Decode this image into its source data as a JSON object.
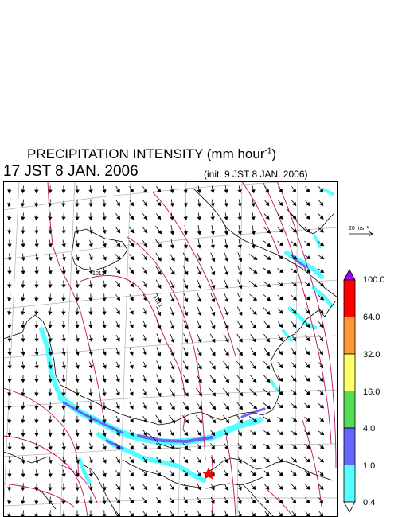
{
  "header": {
    "title_main": "PRECIPITATION INTENSITY (mm hour",
    "title_exp": "-1",
    "title_end": ")",
    "valid_time": "17 JST 8 JAN. 2006",
    "init_time": "(init. 9 JST 8 JAN. 2006)"
  },
  "map": {
    "wind_scale_label": "20 ms⁻¹",
    "isobar_labels": [
      "1013",
      "1012"
    ],
    "colors": {
      "isobar": "#c0106a",
      "coast": "#000000",
      "grid": "#b0b0b0",
      "marker": "#ff0000"
    }
  },
  "colorbar": {
    "levels": [
      "100.0",
      "64.0",
      "32.0",
      "16.0",
      "4.0",
      "1.0",
      "0.4"
    ],
    "colors": [
      "#ff0000",
      "#ff9933",
      "#ffff66",
      "#55dd55",
      "#6666ff",
      "#55ffff"
    ],
    "over_color": "#a000ff",
    "under_color": "#ffffff"
  }
}
